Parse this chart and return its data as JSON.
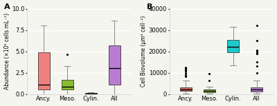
{
  "panel_A": {
    "title": "A",
    "ylabel": "Abundance (×10⁵ cells mL⁻¹)",
    "ylim": [
      0,
      10.0
    ],
    "yticks": [
      0.0,
      2.5,
      5.0,
      7.5,
      10.0
    ],
    "yticklabels": [
      "0.0",
      "2.5",
      "5.0",
      "7.5",
      "10.0"
    ],
    "categories": [
      "Ancy.",
      "Meso.",
      "Cylin.",
      "All"
    ],
    "colors": [
      "#f07070",
      "#7cb518",
      "#bbbbbb",
      "#b06ccc"
    ],
    "boxes": [
      {
        "q1": 0.5,
        "median": 1.1,
        "q3": 4.9,
        "whislo": 0.0,
        "whishi": 8.0,
        "fliers": []
      },
      {
        "q1": 0.55,
        "median": 0.85,
        "q3": 1.65,
        "whislo": 0.0,
        "whishi": 3.3,
        "fliers": [
          4.65
        ]
      },
      {
        "q1": 0.03,
        "median": 0.08,
        "q3": 0.15,
        "whislo": 0.0,
        "whishi": 0.25,
        "fliers": []
      },
      {
        "q1": 1.1,
        "median": 3.0,
        "q3": 5.7,
        "whislo": 0.0,
        "whishi": 8.6,
        "fliers": []
      }
    ]
  },
  "panel_B": {
    "title": "B",
    "ylabel": "Cell Biovolume (μm³ cell⁻¹)",
    "ylim": [
      0,
      40000
    ],
    "yticks": [
      0,
      10000,
      20000,
      30000,
      40000
    ],
    "yticklabels": [
      "0",
      "10000",
      "20000",
      "30000",
      "40000"
    ],
    "categories": [
      "Ancy.",
      "Meso.",
      "Cylin.",
      "All"
    ],
    "colors": [
      "#cc5544",
      "#7cb518",
      "#00c4c4",
      "#b06ccc"
    ],
    "boxes": [
      {
        "q1": 1400,
        "median": 2300,
        "q3": 3100,
        "whislo": 200,
        "whishi": 6200,
        "fliers": [
          8200,
          9000,
          10000,
          11000,
          11500,
          12000,
          12500
        ]
      },
      {
        "q1": 900,
        "median": 1500,
        "q3": 2000,
        "whislo": 200,
        "whishi": 3500,
        "fliers": [
          6500,
          9500
        ]
      },
      {
        "q1": 19500,
        "median": 22000,
        "q3": 25500,
        "whislo": 13500,
        "whishi": 31500,
        "fliers": []
      },
      {
        "q1": 1100,
        "median": 2000,
        "q3": 3000,
        "whislo": 100,
        "whishi": 6200,
        "fliers": [
          10000,
          13000,
          15000,
          19000,
          19500,
          20000,
          20500,
          25000,
          32000
        ]
      }
    ]
  },
  "background_color": "#f5f5f0",
  "grid_color": "#ffffff",
  "flier_marker": ".",
  "flier_size": 2.5
}
